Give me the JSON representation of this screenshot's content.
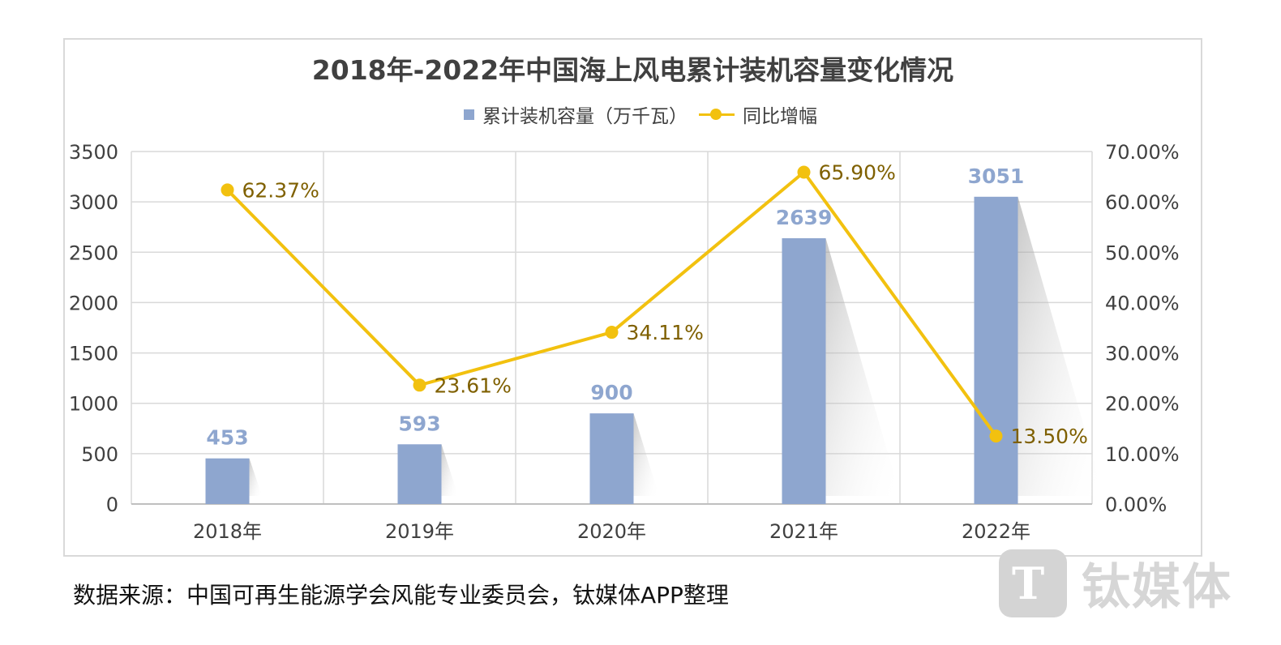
{
  "chart_data": {
    "type": "bar",
    "title": "2018年-2022年中国海上风电累计装机容量变化情况",
    "categories": [
      "2018年",
      "2019年",
      "2020年",
      "2021年",
      "2022年"
    ],
    "series": [
      {
        "name": "累计装机容量（万千瓦）",
        "type": "bar",
        "axis": "left",
        "color": "#8ea6cf",
        "values": [
          453,
          593,
          900,
          2639,
          3051
        ],
        "labels": [
          "453",
          "593",
          "900",
          "2639",
          "3051"
        ]
      },
      {
        "name": "同比增幅",
        "type": "line",
        "axis": "right",
        "color": "#f2c10f",
        "values": [
          62.37,
          23.61,
          34.11,
          65.9,
          13.5
        ],
        "labels": [
          "62.37%",
          "23.61%",
          "34.11%",
          "65.90%",
          "13.50%"
        ]
      }
    ],
    "y_left": {
      "ylim": [
        0,
        3500
      ],
      "ticks": [
        "0",
        "500",
        "1000",
        "1500",
        "2000",
        "2500",
        "3000",
        "3500"
      ]
    },
    "y_right": {
      "ylim": [
        0,
        70
      ],
      "ticks": [
        "0.00%",
        "10.00%",
        "20.00%",
        "30.00%",
        "40.00%",
        "50.00%",
        "60.00%",
        "70.00%"
      ]
    },
    "grid": true,
    "legend_position": "top"
  },
  "source": "数据来源：中国可再生能源学会风能专业委员会，钛媒体APP整理",
  "watermark": "钛媒体",
  "colors": {
    "bar": "#8ea6cf",
    "line": "#f2c10f",
    "bar_label": "#8ea6cf",
    "line_label": "#7f6000"
  },
  "icons": {
    "watermark_logo": "tmt-logo-icon"
  }
}
